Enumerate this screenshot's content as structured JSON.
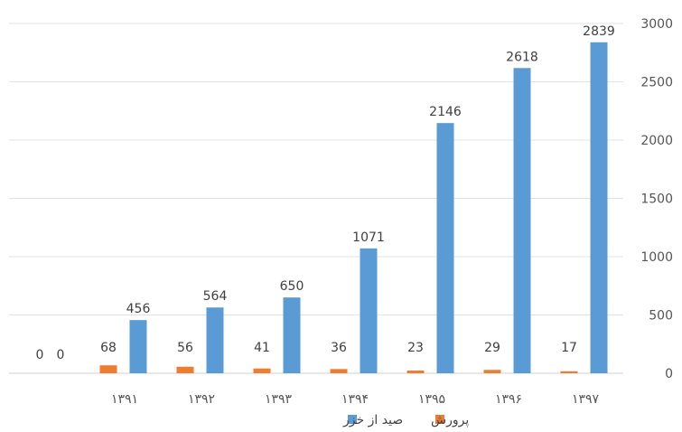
{
  "chart_data": {
    "type": "bar",
    "categories": [
      "۱۳۹۱",
      "۱۳۹۲",
      "۱۳۹۳",
      "۱۳۹۴",
      "۱۳۹۵",
      "۱۳۹۶",
      "۱۳۹۷"
    ],
    "series": [
      {
        "name": "صید از خزر",
        "color": "#5b9bd5",
        "values": [
          456,
          564,
          650,
          1071,
          2146,
          2618,
          2839
        ]
      },
      {
        "name": "پرورش",
        "color": "#ed7d31",
        "values": [
          68,
          56,
          41,
          36,
          23,
          29,
          17
        ]
      }
    ],
    "extra_group": {
      "values": [
        0,
        0
      ]
    },
    "yticks": [
      0,
      500,
      1000,
      1500,
      2000,
      2500,
      3000
    ],
    "ylim": [
      0,
      3000
    ],
    "ytick_labels": [
      "0",
      "500",
      "1000",
      "1500",
      "2000",
      "2500",
      "3000"
    ],
    "grid": true,
    "legend_position": "bottom",
    "title": "",
    "xlabel": "",
    "ylabel": ""
  }
}
